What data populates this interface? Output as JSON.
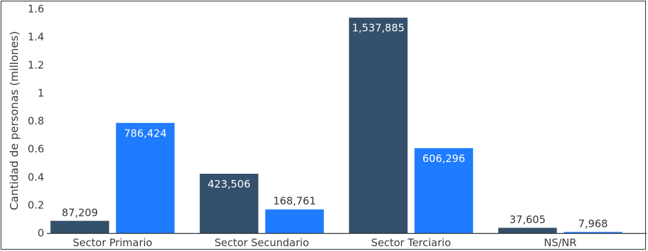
{
  "chart_data": {
    "type": "bar",
    "title": "",
    "xlabel": "",
    "ylabel": "Cantidad de personas (millones)",
    "ylim": [
      0,
      1.6
    ],
    "yticks": [
      0,
      0.2,
      0.4,
      0.6,
      0.8,
      1,
      1.2,
      1.4,
      1.6
    ],
    "ytick_labels": [
      "0",
      "0.2",
      "0.4",
      "0.6",
      "0.8",
      "1",
      "1.2",
      "1.4",
      "1.6"
    ],
    "grid": false,
    "categories": [
      "Sector Primario",
      "Sector Secundario",
      "Sector Terciario",
      "NS/NR"
    ],
    "series": [
      {
        "color": "#34506b",
        "values": [
          87209,
          423506,
          1537885,
          37605
        ],
        "labels": [
          "87,209",
          "423,506",
          "1,537,885",
          "37,605"
        ]
      },
      {
        "color": "#1f7bff",
        "values": [
          786424,
          168761,
          606296,
          7968
        ],
        "labels": [
          "786,424",
          "168,761",
          "606,296",
          "7,968"
        ]
      }
    ]
  }
}
